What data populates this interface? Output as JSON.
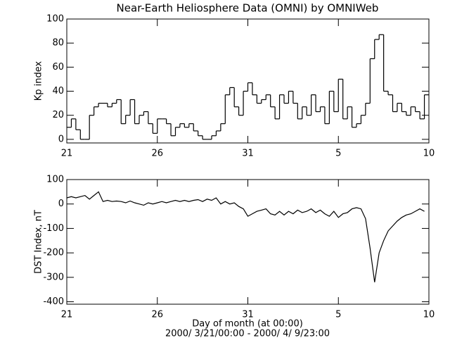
{
  "chart_data": [
    {
      "type": "line",
      "drawstyle": "steps-post",
      "title": "Near-Earth Heliosphere Data (OMNI) by OMNIWeb",
      "y_label": "Kp index",
      "color": "#000000",
      "xlim": [
        0,
        20
      ],
      "xticks": [
        {
          "value": 0,
          "label": "21"
        },
        {
          "value": 5,
          "label": "26"
        },
        {
          "value": 10,
          "label": "31"
        },
        {
          "value": 15,
          "label": "5"
        },
        {
          "value": 20,
          "label": "10"
        }
      ],
      "ylim": [
        -3,
        100
      ],
      "yticks": [
        0,
        20,
        40,
        60,
        80,
        100
      ],
      "x": [
        0,
        0.25,
        0.5,
        0.75,
        1,
        1.25,
        1.5,
        1.75,
        2,
        2.25,
        2.5,
        2.75,
        3,
        3.25,
        3.5,
        3.75,
        4,
        4.25,
        4.5,
        4.75,
        5,
        5.25,
        5.5,
        5.75,
        6,
        6.25,
        6.5,
        6.75,
        7,
        7.25,
        7.5,
        7.75,
        8,
        8.25,
        8.5,
        8.75,
        9,
        9.25,
        9.5,
        9.75,
        10,
        10.25,
        10.5,
        10.75,
        11,
        11.25,
        11.5,
        11.75,
        12,
        12.25,
        12.5,
        12.75,
        13,
        13.25,
        13.5,
        13.75,
        14,
        14.25,
        14.5,
        14.75,
        15,
        15.25,
        15.5,
        15.75,
        16,
        16.25,
        16.5,
        16.75,
        17,
        17.25,
        17.5,
        17.75,
        18,
        18.25,
        18.5,
        18.75,
        19,
        19.25,
        19.5,
        19.75
      ],
      "values": [
        10,
        17,
        8,
        0,
        0,
        20,
        27,
        30,
        30,
        27,
        30,
        33,
        13,
        20,
        33,
        13,
        20,
        23,
        13,
        5,
        17,
        17,
        13,
        3,
        10,
        13,
        10,
        13,
        7,
        3,
        0,
        0,
        3,
        7,
        13,
        37,
        43,
        27,
        20,
        40,
        47,
        37,
        30,
        33,
        37,
        27,
        17,
        37,
        30,
        40,
        30,
        17,
        27,
        20,
        37,
        23,
        27,
        13,
        40,
        23,
        50,
        17,
        27,
        10,
        13,
        20,
        30,
        67,
        83,
        87,
        40,
        37,
        23,
        30,
        23,
        20,
        27,
        23,
        17,
        37
      ]
    },
    {
      "type": "line",
      "y_label": "DST Index, nT",
      "x_label": "Day of month (at 00:00)",
      "subtitle": "2000/ 3/21/00:00 - 2000/ 4/ 9/23:00",
      "color": "#000000",
      "xlim": [
        0,
        20
      ],
      "xticks": [
        {
          "value": 0,
          "label": "21"
        },
        {
          "value": 5,
          "label": "26"
        },
        {
          "value": 10,
          "label": "31"
        },
        {
          "value": 15,
          "label": "5"
        },
        {
          "value": 20,
          "label": "10"
        }
      ],
      "ylim": [
        -410,
        100
      ],
      "yticks": [
        -400,
        -300,
        -200,
        -100,
        0,
        100
      ],
      "x": [
        0,
        0.25,
        0.5,
        0.75,
        1,
        1.25,
        1.5,
        1.75,
        2,
        2.25,
        2.5,
        2.75,
        3,
        3.25,
        3.5,
        3.75,
        4,
        4.25,
        4.5,
        4.75,
        5,
        5.25,
        5.5,
        5.75,
        6,
        6.25,
        6.5,
        6.75,
        7,
        7.25,
        7.5,
        7.75,
        8,
        8.25,
        8.5,
        8.75,
        9,
        9.25,
        9.5,
        9.75,
        10,
        10.25,
        10.5,
        10.75,
        11,
        11.25,
        11.5,
        11.75,
        12,
        12.25,
        12.5,
        12.75,
        13,
        13.25,
        13.5,
        13.75,
        14,
        14.25,
        14.5,
        14.75,
        15,
        15.25,
        15.5,
        15.75,
        16,
        16.25,
        16.5,
        16.75,
        17,
        17.25,
        17.5,
        17.75,
        18,
        18.25,
        18.5,
        18.75,
        19,
        19.25,
        19.5,
        19.75
      ],
      "values": [
        25,
        30,
        25,
        30,
        35,
        20,
        35,
        50,
        10,
        15,
        10,
        12,
        10,
        5,
        12,
        5,
        0,
        -5,
        5,
        0,
        5,
        10,
        5,
        10,
        15,
        10,
        15,
        10,
        15,
        18,
        10,
        20,
        15,
        25,
        0,
        10,
        0,
        5,
        -10,
        -20,
        -50,
        -40,
        -30,
        -25,
        -20,
        -40,
        -45,
        -30,
        -45,
        -30,
        -40,
        -25,
        -35,
        -30,
        -20,
        -35,
        -25,
        -40,
        -50,
        -30,
        -55,
        -40,
        -35,
        -20,
        -15,
        -20,
        -60,
        -180,
        -320,
        -200,
        -150,
        -110,
        -90,
        -70,
        -55,
        -45,
        -40,
        -30,
        -20,
        -30
      ]
    }
  ]
}
